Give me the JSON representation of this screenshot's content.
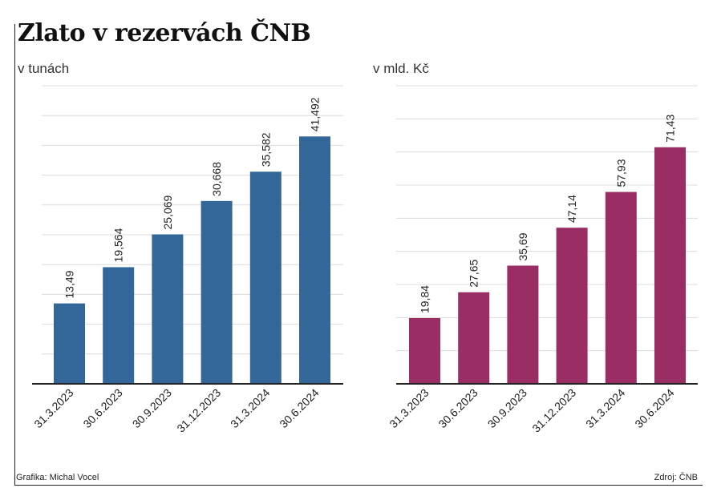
{
  "title": "Zlato v rezervách ČNB",
  "footer": {
    "credit": "Grafika: Michal Vocel",
    "source": "Zdroj: ČNB"
  },
  "chart_data": [
    {
      "type": "bar",
      "subtitle": "v tunách",
      "color": "#336699",
      "categories": [
        "31.3.2023",
        "30.6.2023",
        "30.9.2023",
        "31.12.2023",
        "31.3.2024",
        "30.6.2024"
      ],
      "values": [
        13.49,
        19.564,
        25.069,
        30.668,
        35.582,
        41.492
      ],
      "value_labels": [
        "13,49",
        "19,564",
        "25,069",
        "30,668",
        "35,582",
        "41,492"
      ],
      "ylim": [
        0,
        50
      ],
      "grid": true
    },
    {
      "type": "bar",
      "subtitle": "v mld. Kč",
      "color": "#9a2d64",
      "categories": [
        "31.3.2023",
        "30.6.2023",
        "30.9.2023",
        "31.12.2023",
        "31.3.2024",
        "30.6.2024"
      ],
      "values": [
        19.84,
        27.65,
        35.69,
        47.14,
        57.93,
        71.43
      ],
      "value_labels": [
        "19,84",
        "27,65",
        "35,69",
        "47,14",
        "57,93",
        "71,43"
      ],
      "ylim": [
        0,
        90
      ],
      "grid": true
    }
  ]
}
